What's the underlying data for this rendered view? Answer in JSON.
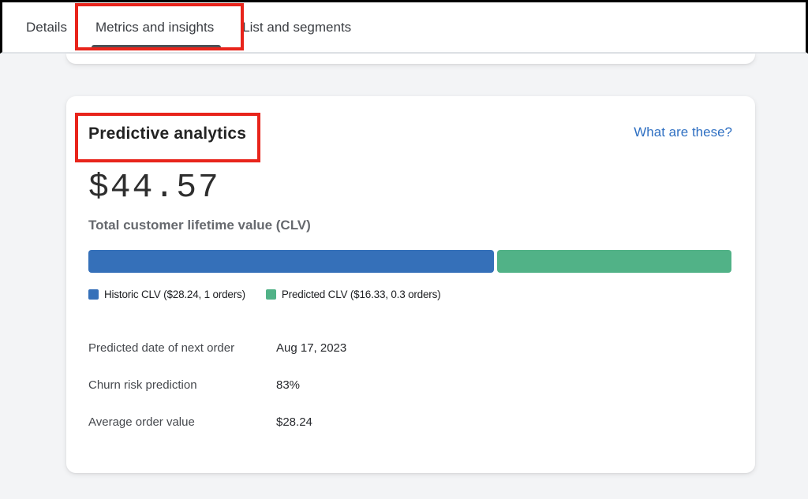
{
  "tab_bar": {
    "tabs": [
      {
        "label": "Details",
        "selected": false
      },
      {
        "label": "Metrics and insights",
        "selected": true
      },
      {
        "label": "List and segments",
        "selected": false
      }
    ]
  },
  "card": {
    "title": "Predictive analytics",
    "help_link": "What are these?",
    "metric_value": "$44.57",
    "metric_label": "Total customer lifetime value (CLV)",
    "details": [
      {
        "label": "Predicted date of next order",
        "value": "Aug 17, 2023"
      },
      {
        "label": "Churn risk prediction",
        "value": "83%"
      },
      {
        "label": "Average order value",
        "value": "$28.24"
      }
    ]
  },
  "chart_data": {
    "type": "bar",
    "subtype": "horizontal-stacked",
    "title": "Total customer lifetime value (CLV)",
    "total": 44.57,
    "total_display": "$44.57",
    "series": [
      {
        "name": "Historic CLV ($28.24, 1 orders)",
        "value": 28.24,
        "orders": 1,
        "color": "#3570b9"
      },
      {
        "name": "Predicted CLV ($16.33, 0.3 orders)",
        "value": 16.33,
        "orders": 0.3,
        "color": "#51b287"
      }
    ],
    "legend_position": "bottom",
    "axis": "none"
  },
  "annotations": {
    "color": "#e8241b",
    "boxes": [
      {
        "target": "metrics-and-insights-tab"
      },
      {
        "target": "predictive-analytics-title"
      }
    ]
  },
  "colors": {
    "historic_blue": "#3570b9",
    "predicted_green": "#51b287",
    "link_blue": "#2e6fc2",
    "annotation_red": "#e8241b",
    "tab_underline": "#4d5055",
    "page_bg": "#f3f4f6"
  }
}
